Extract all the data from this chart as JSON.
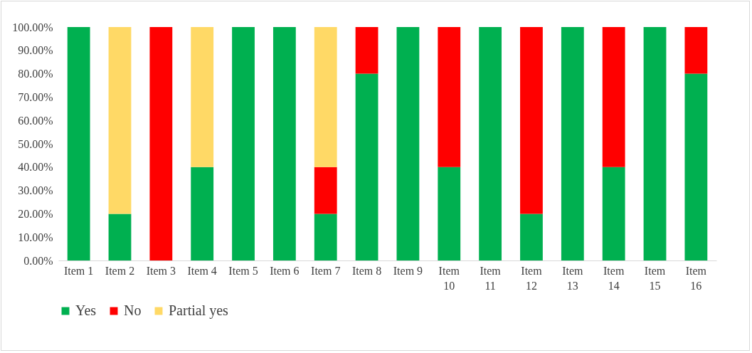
{
  "chart_data": {
    "type": "bar",
    "stacked": true,
    "categories": [
      "Item 1",
      "Item 2",
      "Item 3",
      "Item 4",
      "Item 5",
      "Item 6",
      "Item 7",
      "Item 8",
      "Item 9",
      "Item 10",
      "Item 11",
      "Item 12",
      "Item 13",
      "Item 14",
      "Item 15",
      "Item 16"
    ],
    "series": [
      {
        "name": "Yes",
        "color": "#00b050",
        "values": [
          100,
          20,
          0,
          40,
          100,
          100,
          20,
          80,
          100,
          40,
          100,
          20,
          100,
          40,
          100,
          80
        ]
      },
      {
        "name": "No",
        "color": "#ff0000",
        "values": [
          0,
          0,
          100,
          0,
          0,
          0,
          20,
          20,
          0,
          60,
          0,
          80,
          0,
          60,
          0,
          20
        ]
      },
      {
        "name": "Partial yes",
        "color": "#ffd966",
        "values": [
          0,
          80,
          0,
          60,
          0,
          0,
          60,
          0,
          0,
          0,
          0,
          0,
          0,
          0,
          0,
          0
        ]
      }
    ],
    "ylim": [
      0,
      100
    ],
    "yticks": [
      {
        "value": 0,
        "label": "0.00%"
      },
      {
        "value": 10,
        "label": "10.00%"
      },
      {
        "value": 20,
        "label": "20.00%"
      },
      {
        "value": 30,
        "label": "30.00%"
      },
      {
        "value": 40,
        "label": "40.00%"
      },
      {
        "value": 50,
        "label": "50.00%"
      },
      {
        "value": 60,
        "label": "60.00%"
      },
      {
        "value": 70,
        "label": "70.00%"
      },
      {
        "value": 80,
        "label": "80.00%"
      },
      {
        "value": 90,
        "label": "90.00%"
      },
      {
        "value": 100,
        "label": "100.00%"
      }
    ],
    "grid": false,
    "legend": "bottom"
  }
}
